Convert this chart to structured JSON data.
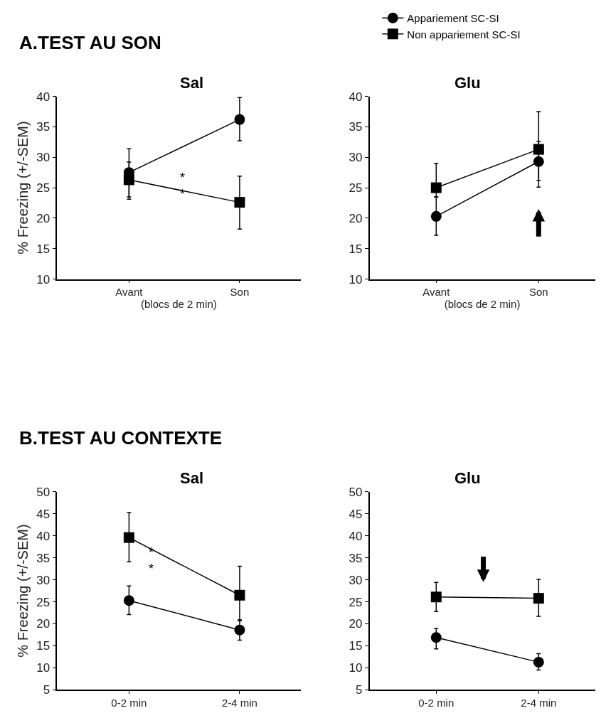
{
  "chart_data": [
    {
      "type": "line",
      "title": "Sal",
      "annotations": [
        "A.TEST AU SON",
        "**"
      ],
      "ylabel": "% Freezing (+/-SEM)",
      "xlabel": "(blocs de 2 min)",
      "categories": [
        "Avant",
        "Son"
      ],
      "ylim": [
        10,
        40
      ],
      "yticks": [
        10,
        15,
        20,
        25,
        30,
        35,
        40
      ],
      "legend": "top right",
      "series": [
        {
          "name": "Appariement SC-SI",
          "color": "#000000",
          "marker": "circle",
          "values": [
            27.5,
            36.2
          ],
          "errors": [
            [
              23.1,
              31.4
            ],
            [
              32.7,
              39.8
            ]
          ]
        },
        {
          "name": "Non appariement SC-SI",
          "color": "#000000",
          "marker": "square",
          "values": [
            26.3,
            22.6
          ],
          "errors": [
            [
              23.5,
              29.2
            ],
            [
              18.2,
              26.9
            ]
          ]
        }
      ]
    },
    {
      "type": "line",
      "title": "Glu",
      "xlabel": "(blocs de 2 min)",
      "categories": [
        "Avant",
        "Son"
      ],
      "ylim": [
        10,
        40
      ],
      "yticks": [
        10,
        15,
        20,
        25,
        30,
        35,
        40
      ],
      "series": [
        {
          "color": "#000000",
          "marker": "circle",
          "values": [
            20.3,
            29.3
          ],
          "errors": [
            [
              17.2,
              23.5
            ],
            [
              25.1,
              32.6
            ]
          ]
        },
        {
          "color": "#000000",
          "marker": "square",
          "values": [
            25.0,
            31.3
          ],
          "errors": [
            [
              23.5,
              29.0
            ],
            [
              26.2,
              37.5
            ]
          ]
        }
      ]
    },
    {
      "type": "line",
      "title": "Sal",
      "annotations": [
        "B.TEST AU CONTEXTE",
        "**"
      ],
      "ylabel": "% Freezing (+/-SEM)",
      "categories": [
        "0-2 min",
        "2-4 min"
      ],
      "ylim": [
        5,
        50
      ],
      "yticks": [
        5,
        10,
        15,
        20,
        25,
        30,
        35,
        40,
        45,
        50
      ],
      "series": [
        {
          "color": "#000000",
          "marker": "circle",
          "values": [
            25.3,
            18.6
          ],
          "errors": [
            [
              22.1,
              28.6
            ],
            [
              16.3,
              20.7
            ]
          ]
        },
        {
          "color": "#000000",
          "marker": "square",
          "values": [
            39.6,
            26.5
          ],
          "errors": [
            [
              34.1,
              45.3
            ],
            [
              20.9,
              33.1
            ]
          ]
        }
      ]
    },
    {
      "type": "line",
      "title": "Glu",
      "categories": [
        "0-2 min",
        "2-4 min"
      ],
      "ylim": [
        5,
        50
      ],
      "yticks": [
        5,
        10,
        15,
        20,
        25,
        30,
        35,
        40,
        45,
        50
      ],
      "series": [
        {
          "color": "#000000",
          "marker": "circle",
          "values": [
            16.9,
            11.3
          ],
          "errors": [
            [
              14.3,
              18.9
            ],
            [
              9.5,
              13.2
            ]
          ]
        },
        {
          "color": "#000000",
          "marker": "square",
          "values": [
            26.1,
            25.8
          ],
          "errors": [
            [
              22.8,
              29.4
            ],
            [
              21.7,
              30.1
            ]
          ]
        }
      ]
    }
  ]
}
